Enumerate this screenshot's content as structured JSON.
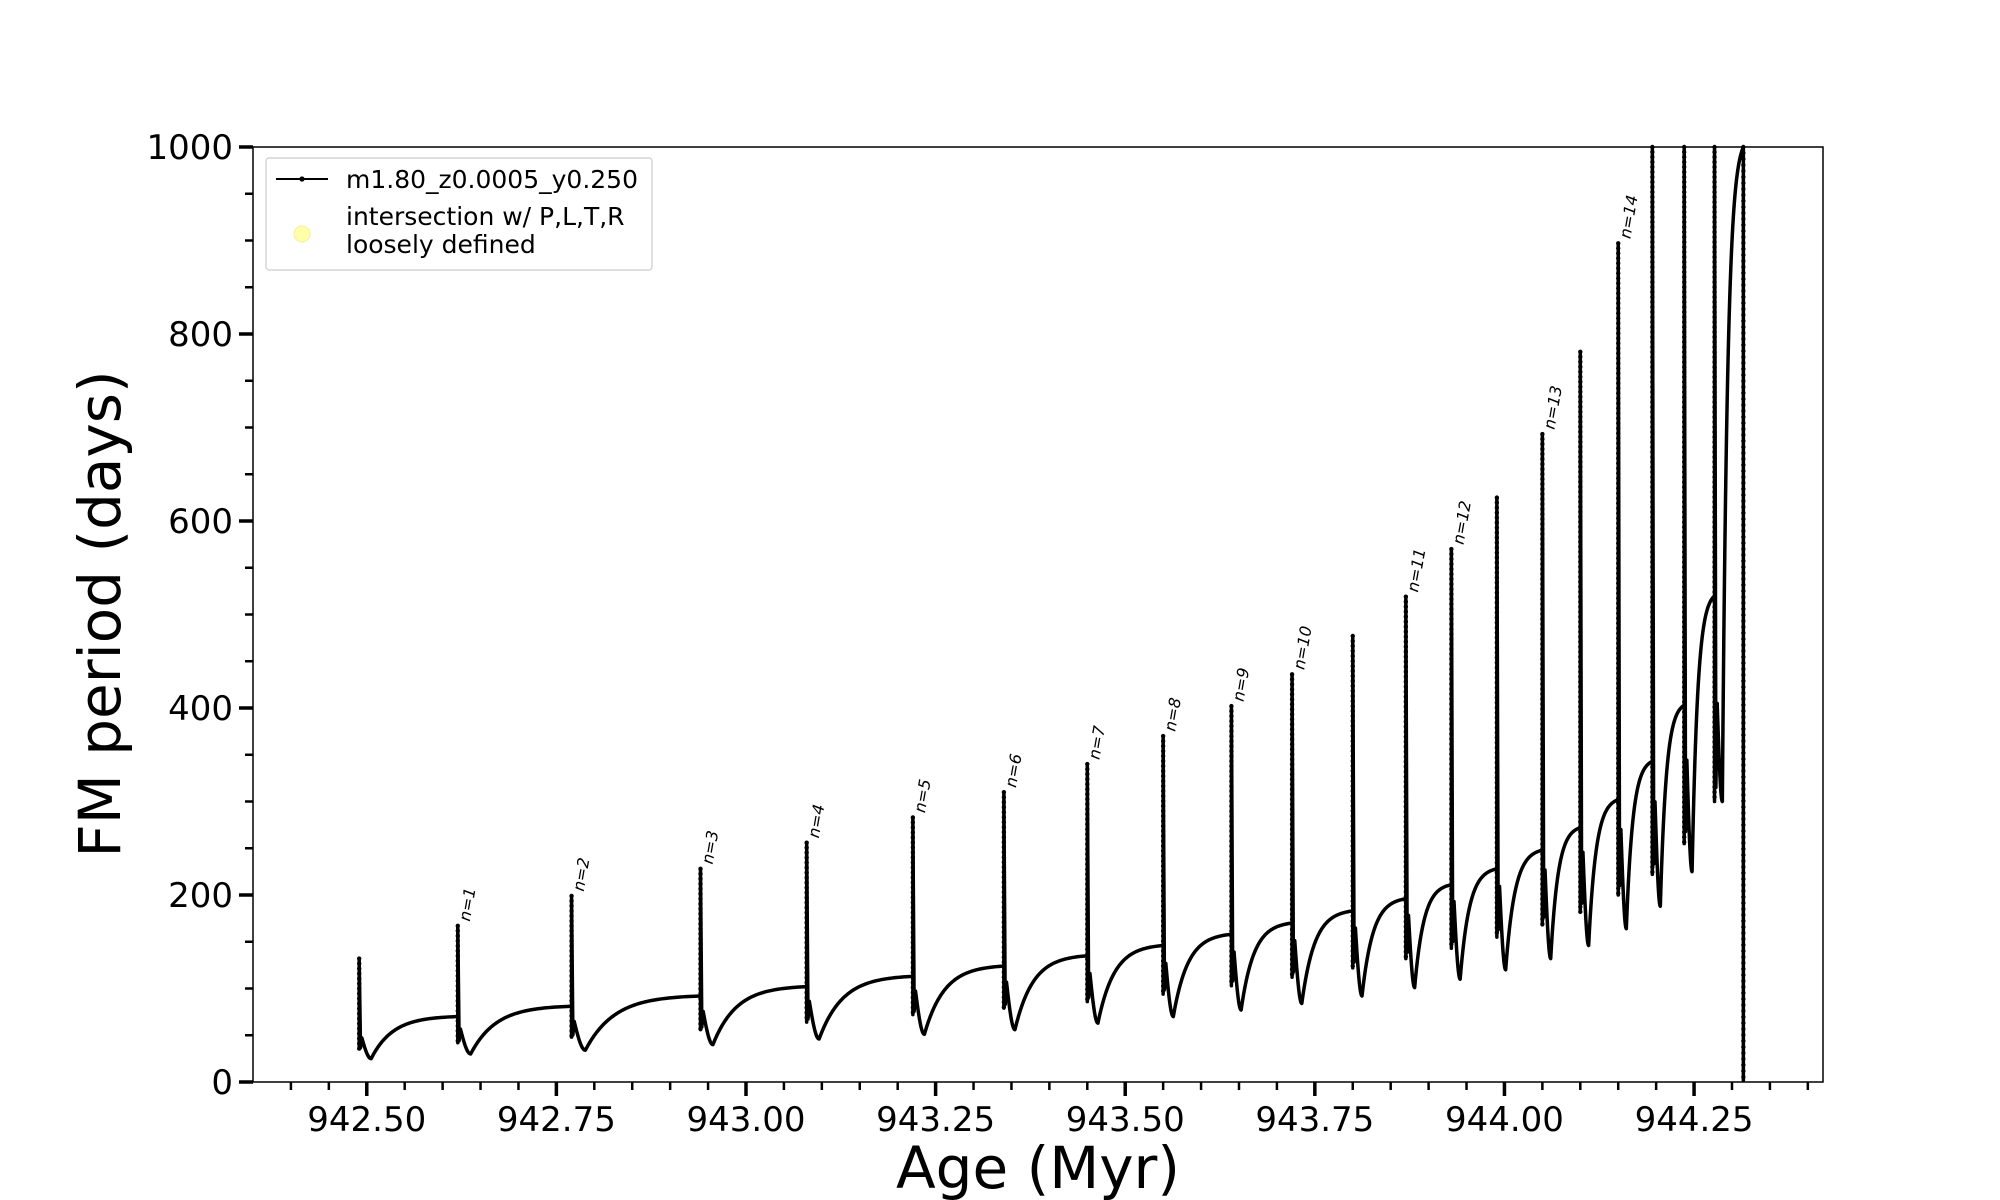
{
  "chart_data": {
    "type": "line",
    "xlabel": "Age (Myr)",
    "ylabel": "FM period (days)",
    "xlim": [
      942.35,
      944.42
    ],
    "ylim": [
      0,
      1000
    ],
    "x_ticks": [
      942.5,
      942.75,
      943.0,
      943.25,
      943.5,
      943.75,
      944.0,
      944.25
    ],
    "x_tick_labels": [
      "942.50",
      "942.75",
      "943.00",
      "943.25",
      "943.50",
      "943.75",
      "944.00",
      "944.25"
    ],
    "y_ticks": [
      0,
      200,
      400,
      600,
      800,
      1000
    ],
    "y_tick_labels": [
      "0",
      "200",
      "400",
      "600",
      "800",
      "1000"
    ],
    "grid": false,
    "legend_position": "top-left",
    "legend": [
      {
        "label": "m1.80_z0.0005_y0.250",
        "marker": "line-dot",
        "color": "#000000"
      },
      {
        "label": "intersection w/ P,L,T,R\nloosely defined",
        "marker": "circle",
        "color": "#ffffaa"
      }
    ],
    "series": [
      {
        "name": "m1.80_z0.0005_y0.250",
        "color": "#000000",
        "pulses": [
          {
            "x": 942.49,
            "peak": 132,
            "low": 35,
            "min_after": 25,
            "base_end": 70,
            "label": ""
          },
          {
            "x": 942.62,
            "peak": 167,
            "low": 42,
            "min_after": 30,
            "base_end": 81,
            "label": "n=1"
          },
          {
            "x": 942.77,
            "peak": 199,
            "low": 48,
            "min_after": 34,
            "base_end": 92,
            "label": "n=2"
          },
          {
            "x": 942.94,
            "peak": 228,
            "low": 56,
            "min_after": 40,
            "base_end": 102,
            "label": "n=3"
          },
          {
            "x": 943.08,
            "peak": 256,
            "low": 64,
            "min_after": 46,
            "base_end": 113,
            "label": "n=4"
          },
          {
            "x": 943.22,
            "peak": 283,
            "low": 72,
            "min_after": 51,
            "base_end": 124,
            "label": "n=5"
          },
          {
            "x": 943.34,
            "peak": 310,
            "low": 79,
            "min_after": 56,
            "base_end": 135,
            "label": "n=6"
          },
          {
            "x": 943.45,
            "peak": 340,
            "low": 86,
            "min_after": 63,
            "base_end": 146,
            "label": "n=7"
          },
          {
            "x": 943.55,
            "peak": 370,
            "low": 94,
            "min_after": 70,
            "base_end": 158,
            "label": "n=8"
          },
          {
            "x": 943.64,
            "peak": 402,
            "low": 103,
            "min_after": 77,
            "base_end": 170,
            "label": "n=9"
          },
          {
            "x": 943.72,
            "peak": 436,
            "low": 112,
            "min_after": 84,
            "base_end": 183,
            "label": "n=10"
          },
          {
            "x": 943.8,
            "peak": 477,
            "low": 122,
            "min_after": 92,
            "base_end": 196,
            "label": ""
          },
          {
            "x": 943.87,
            "peak": 519,
            "low": 132,
            "min_after": 101,
            "base_end": 211,
            "label": "n=11"
          },
          {
            "x": 943.93,
            "peak": 570,
            "low": 143,
            "min_after": 110,
            "base_end": 228,
            "label": "n=12"
          },
          {
            "x": 943.99,
            "peak": 625,
            "low": 155,
            "min_after": 120,
            "base_end": 248,
            "label": ""
          },
          {
            "x": 944.05,
            "peak": 693,
            "low": 168,
            "min_after": 132,
            "base_end": 272,
            "label": "n=13"
          },
          {
            "x": 944.1,
            "peak": 781,
            "low": 182,
            "min_after": 146,
            "base_end": 302,
            "label": ""
          },
          {
            "x": 944.15,
            "peak": 897,
            "low": 200,
            "min_after": 164,
            "base_end": 343,
            "label": "n=14"
          },
          {
            "x": 944.195,
            "peak": 1000,
            "low": 222,
            "min_after": 188,
            "base_end": 403,
            "label": ""
          },
          {
            "x": 944.237,
            "peak": 1000,
            "low": 255,
            "min_after": 225,
            "base_end": 520,
            "label": ""
          },
          {
            "x": 944.277,
            "peak": 1000,
            "low": 300,
            "min_after": 300,
            "base_end": 1000,
            "label": ""
          }
        ],
        "final_drop": {
          "x": 944.315,
          "from": 1000,
          "to": 0
        }
      }
    ]
  }
}
